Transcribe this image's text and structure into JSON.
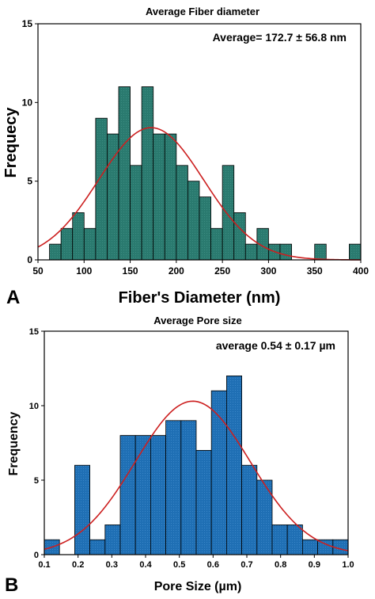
{
  "chart_data": [
    {
      "type": "bar",
      "panel_label": "A",
      "title": "Average Fiber diameter",
      "annotation": "Average= 172.7 ± 56.8 nm",
      "xlabel": "Fiber's Diameter (nm)",
      "ylabel": "Frequecy",
      "xlim": [
        50,
        400
      ],
      "ylim": [
        0,
        15
      ],
      "xticks": [
        "50",
        "100",
        "150",
        "200",
        "250",
        "300",
        "350",
        "400"
      ],
      "yticks": [
        "0",
        "5",
        "10",
        "15"
      ],
      "bin_width": 12.5,
      "bins": [
        {
          "x0": 62.5,
          "value": 1
        },
        {
          "x0": 75,
          "value": 2
        },
        {
          "x0": 87.5,
          "value": 3
        },
        {
          "x0": 100,
          "value": 2
        },
        {
          "x0": 112.5,
          "value": 9
        },
        {
          "x0": 125,
          "value": 8
        },
        {
          "x0": 137.5,
          "value": 11
        },
        {
          "x0": 150,
          "value": 6
        },
        {
          "x0": 162.5,
          "value": 11
        },
        {
          "x0": 175,
          "value": 8
        },
        {
          "x0": 187.5,
          "value": 8
        },
        {
          "x0": 200,
          "value": 6
        },
        {
          "x0": 212.5,
          "value": 5
        },
        {
          "x0": 225,
          "value": 4
        },
        {
          "x0": 237.5,
          "value": 2
        },
        {
          "x0": 250,
          "value": 6
        },
        {
          "x0": 262.5,
          "value": 3
        },
        {
          "x0": 275,
          "value": 1
        },
        {
          "x0": 287.5,
          "value": 2
        },
        {
          "x0": 300,
          "value": 1
        },
        {
          "x0": 312.5,
          "value": 1
        },
        {
          "x0": 350,
          "value": 1
        },
        {
          "x0": 387.5,
          "value": 1
        }
      ],
      "fit": {
        "type": "gaussian",
        "mean": 172.7,
        "sd": 56.8,
        "peak": 8.4
      },
      "bar_color": "#2a7a6f",
      "fit_color": "#cc1f1f"
    },
    {
      "type": "bar",
      "panel_label": "B",
      "title": "Average Pore size",
      "annotation": "average 0.54 ± 0.17 µm",
      "xlabel": "Pore Size (µm)",
      "ylabel": "Frequency",
      "xlim": [
        0.1,
        1.0
      ],
      "ylim": [
        0,
        15
      ],
      "xticks": [
        "0.1",
        "0.2",
        "0.3",
        "0.4",
        "0.5",
        "0.6",
        "0.7",
        "0.8",
        "0.9",
        "1.0"
      ],
      "yticks": [
        "0",
        "5",
        "10",
        "15"
      ],
      "bin_width": 0.045,
      "bins": [
        {
          "x0": 0.1,
          "value": 1
        },
        {
          "x0": 0.19,
          "value": 6
        },
        {
          "x0": 0.235,
          "value": 1
        },
        {
          "x0": 0.28,
          "value": 2
        },
        {
          "x0": 0.325,
          "value": 8
        },
        {
          "x0": 0.37,
          "value": 8
        },
        {
          "x0": 0.415,
          "value": 8
        },
        {
          "x0": 0.46,
          "value": 9
        },
        {
          "x0": 0.505,
          "value": 9
        },
        {
          "x0": 0.55,
          "value": 7
        },
        {
          "x0": 0.595,
          "value": 11
        },
        {
          "x0": 0.64,
          "value": 12
        },
        {
          "x0": 0.685,
          "value": 6
        },
        {
          "x0": 0.73,
          "value": 5
        },
        {
          "x0": 0.775,
          "value": 2
        },
        {
          "x0": 0.82,
          "value": 2
        },
        {
          "x0": 0.865,
          "value": 1
        },
        {
          "x0": 0.91,
          "value": 1
        },
        {
          "x0": 0.955,
          "value": 1
        }
      ],
      "fit": {
        "type": "gaussian",
        "mean": 0.54,
        "sd": 0.17,
        "peak": 10.3
      },
      "bar_color": "#1f6fb4",
      "fit_color": "#cc1f1f"
    }
  ]
}
